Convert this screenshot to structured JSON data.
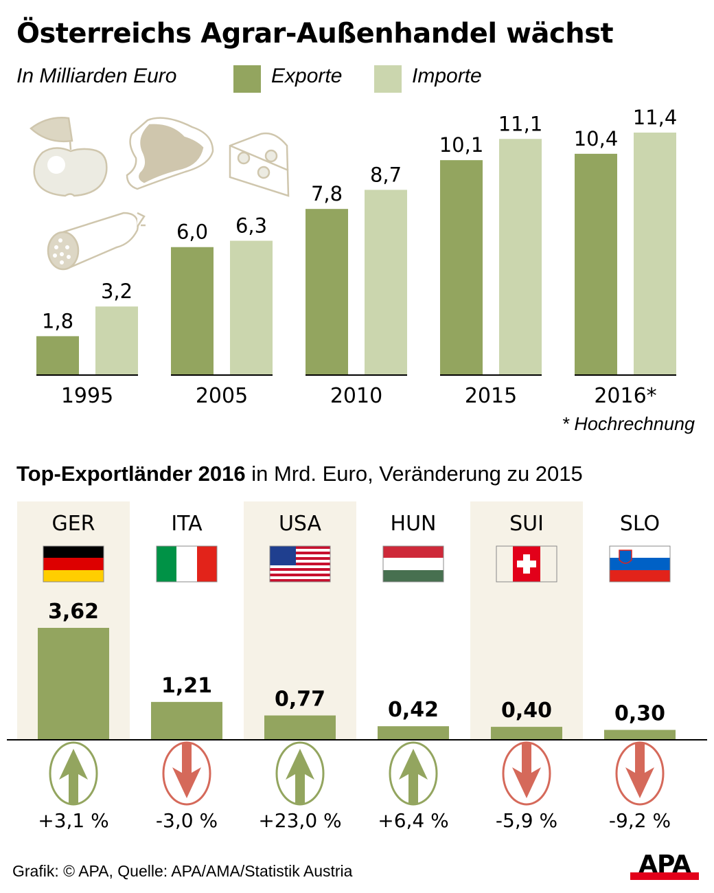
{
  "title": "Österreichs Agrar-Außenhandel wächst",
  "subtitle": "In Milliarden Euro",
  "colors": {
    "exports": "#93a55f",
    "imports": "#cbd6ae",
    "up": "#93a55f",
    "down": "#d5695a",
    "shade": "#f6f2e7",
    "icon": "#cfc6ad"
  },
  "footnote": "* Hochrechnung",
  "section2": {
    "title_bold": "Top-Exportländer 2016",
    "title_rest": " in Mrd. Euro, Veränderung zu 2015"
  },
  "source": "Grafik: © APA, Quelle: APA/AMA/Statistik Austria",
  "logo": "APA",
  "chart_data": [
    {
      "type": "bar",
      "title": "Österreichs Agrar-Außenhandel wächst",
      "ylabel": "In Milliarden Euro",
      "categories": [
        "1995",
        "2005",
        "2010",
        "2015",
        "2016*"
      ],
      "series": [
        {
          "name": "Exporte",
          "values": [
            1.8,
            6.0,
            7.8,
            10.1,
            10.4
          ],
          "labels": [
            "1,8",
            "6,0",
            "7,8",
            "10,1",
            "10,4"
          ]
        },
        {
          "name": "Importe",
          "values": [
            3.2,
            6.3,
            8.7,
            11.1,
            11.4
          ],
          "labels": [
            "3,2",
            "6,3",
            "8,7",
            "11,1",
            "11,4"
          ]
        }
      ],
      "ylim": [
        0,
        11.4
      ],
      "legend": "top"
    },
    {
      "type": "bar",
      "title": "Top-Exportländer 2016 in Mrd. Euro, Veränderung zu 2015",
      "categories": [
        "GER",
        "ITA",
        "USA",
        "HUN",
        "SUI",
        "SLO"
      ],
      "values": [
        3.62,
        1.21,
        0.77,
        0.42,
        0.4,
        0.3
      ],
      "labels": [
        "3,62",
        "1,21",
        "0,77",
        "0,42",
        "0,40",
        "0,30"
      ],
      "change": [
        "+3,1 %",
        "-3,0 %",
        "+23,0 %",
        "+6,4 %",
        "-5,9 %",
        "-9,2 %"
      ],
      "direction": [
        "up",
        "down",
        "up",
        "up",
        "down",
        "down"
      ],
      "ylim": [
        0,
        3.62
      ]
    }
  ]
}
